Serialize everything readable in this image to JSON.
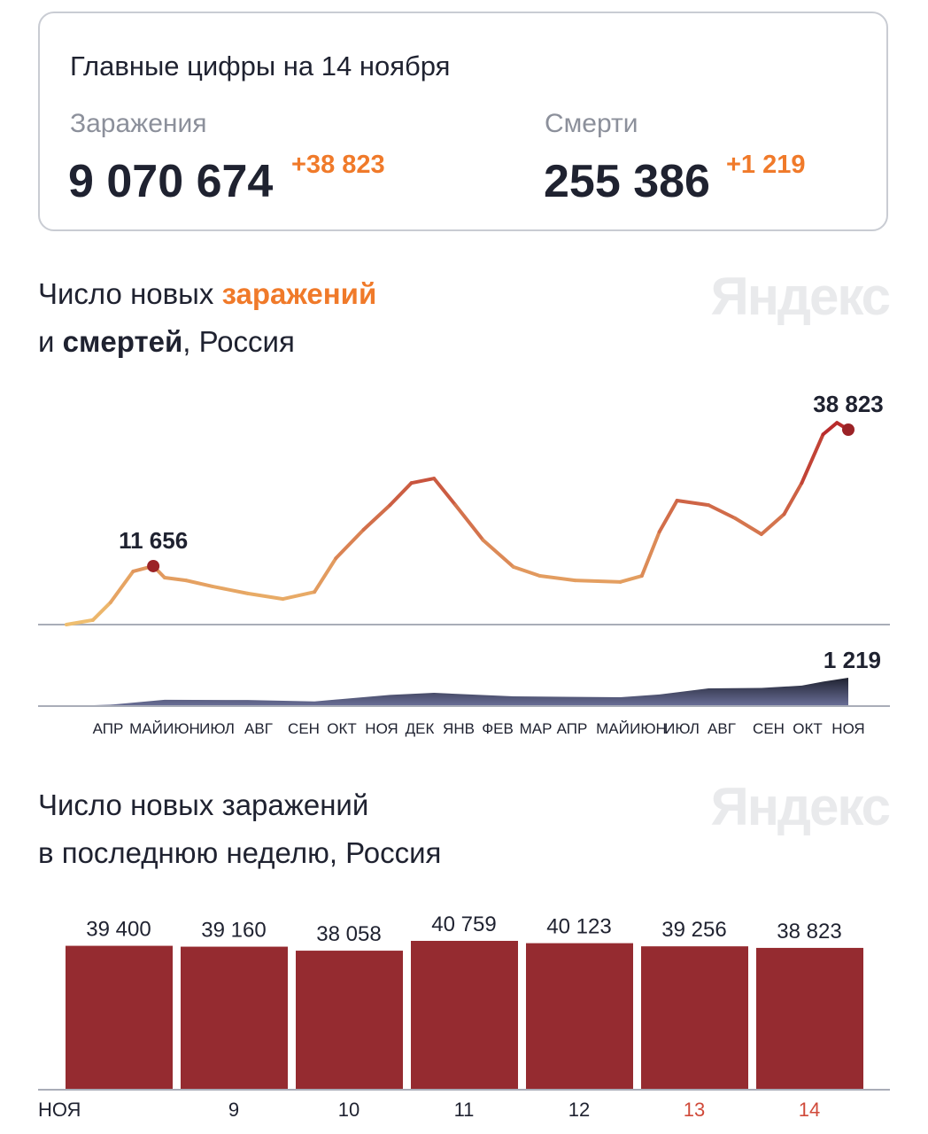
{
  "summary": {
    "title": "Главные цифры на 14 ноября",
    "infections_label": "Заражения",
    "infections_total": "9 070 674",
    "infections_delta": "+38 823",
    "deaths_label": "Смерти",
    "deaths_total": "255 386",
    "deaths_delta": "+1 219"
  },
  "logo": "Яндекс",
  "chart_data": [
    {
      "type": "line",
      "title_parts": [
        "Число новых ",
        "заражений",
        "и ",
        "смертей",
        ", Россия"
      ],
      "x_tick_labels": [
        "АПР",
        "МАЙ",
        "ИЮН",
        "ИЮЛ",
        "АВГ",
        "СЕН",
        "ОКТ",
        "НОЯ",
        "ДЕК",
        "ЯНВ",
        "ФЕВ",
        "МАР",
        "АПР",
        "МАЙ",
        "ИЮН",
        "ИЮЛ",
        "АВГ",
        "СЕН",
        "ОКТ",
        "НОЯ"
      ],
      "xlim": [
        "2020-03-03",
        "2021-11-14"
      ],
      "colors": {
        "low": "#f0c070",
        "high": "#b8282a",
        "deaths": "#3b3f5c"
      },
      "series": [
        {
          "key": "infections",
          "x": [
            "2020-03-03",
            "2020-03-24",
            "2020-04-07",
            "2020-04-25",
            "2020-05-11",
            "2020-05-20",
            "2020-06-06",
            "2020-06-27",
            "2020-07-25",
            "2020-08-22",
            "2020-09-16",
            "2020-10-03",
            "2020-10-25",
            "2020-11-15",
            "2020-12-02",
            "2020-12-20",
            "2021-01-06",
            "2021-01-28",
            "2021-02-21",
            "2021-03-14",
            "2021-04-11",
            "2021-05-17",
            "2021-06-03",
            "2021-06-17",
            "2021-07-01",
            "2021-07-26",
            "2021-08-16",
            "2021-09-06",
            "2021-09-24",
            "2021-10-08",
            "2021-10-25",
            "2021-11-05",
            "2021-11-14"
          ],
          "y": [
            0,
            900,
            4400,
            10600,
            11656,
            9350,
            8800,
            7600,
            6200,
            5100,
            6500,
            13200,
            18900,
            23800,
            28200,
            29100,
            23800,
            16800,
            11500,
            9700,
            8800,
            8500,
            9700,
            18500,
            24700,
            23800,
            21200,
            18000,
            22000,
            28200,
            37900,
            40200,
            38823
          ],
          "annotations": [
            {
              "x": "2020-05-11",
              "label": "11 656"
            },
            {
              "x": "2021-11-14",
              "label": "38 823"
            }
          ]
        },
        {
          "key": "deaths",
          "x": [
            "2020-03-03",
            "2020-04-07",
            "2020-05-20",
            "2020-07-25",
            "2020-09-16",
            "2020-11-15",
            "2020-12-20",
            "2021-02-21",
            "2021-05-17",
            "2021-06-17",
            "2021-07-26",
            "2021-09-06",
            "2021-10-08",
            "2021-10-25",
            "2021-11-14"
          ],
          "y": [
            0,
            60,
            270,
            260,
            200,
            480,
            570,
            420,
            380,
            500,
            760,
            780,
            880,
            1050,
            1219
          ],
          "annotations": [
            {
              "x": "2021-11-14",
              "label": "1 219"
            }
          ]
        }
      ]
    },
    {
      "type": "bar",
      "title_line1": "Число новых заражений",
      "title_line2": "в последнюю неделю, Россия",
      "categories": [
        "НОЯ",
        "9",
        "10",
        "11",
        "12",
        "13",
        "14"
      ],
      "values": [
        39400,
        39160,
        38058,
        40759,
        40123,
        39256,
        38823
      ],
      "value_labels": [
        "39 400",
        "39 160",
        "38 058",
        "40 759",
        "40 123",
        "39 256",
        "38 823"
      ],
      "highlight_categories": [
        "13",
        "14"
      ],
      "colors": {
        "bar": "#952b30",
        "weekend": "#d04a3a"
      }
    }
  ]
}
